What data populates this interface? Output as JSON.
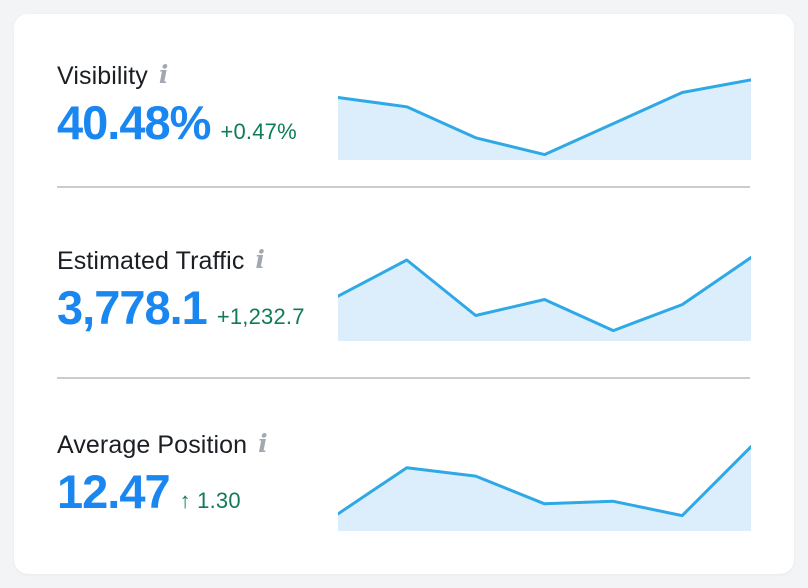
{
  "colors": {
    "page_bg": "#F3F4F6",
    "card_bg": "#FFFFFF",
    "title_text": "#1B1F24",
    "accent_blue": "#1A86F0",
    "delta_green": "#107C57",
    "info_icon": "#A2A8B2",
    "divider": "#C9CDD2",
    "spark_line": "#2FA9E6",
    "spark_fill": "#DCEEFB"
  },
  "icons": {
    "info": "i",
    "up_arrow": "↑"
  },
  "metrics": [
    {
      "label": "Visibility",
      "value": "40.48%",
      "delta": "+0.47%"
    },
    {
      "label": "Estimated Traffic",
      "value": "3,778.1",
      "delta": "+1,232.7"
    },
    {
      "label": "Average Position",
      "value": "12.47",
      "delta": "↑ 1.30"
    }
  ],
  "chart_data": [
    {
      "type": "area",
      "name": "visibility-trend",
      "x": [
        1,
        2,
        3,
        4,
        5,
        6,
        7
      ],
      "values": [
        72,
        61,
        24,
        4,
        41,
        78,
        93
      ],
      "ylim": [
        0,
        100
      ],
      "grid": false,
      "legend": false,
      "line_color": "#2FA9E6",
      "fill_color": "#DCEEFB"
    },
    {
      "type": "area",
      "name": "estimated-traffic-trend",
      "x": [
        1,
        2,
        3,
        4,
        5,
        6,
        7
      ],
      "values": [
        51,
        94,
        28,
        47,
        10,
        41,
        97
      ],
      "ylim": [
        0,
        100
      ],
      "grid": false,
      "legend": false,
      "line_color": "#2FA9E6",
      "fill_color": "#DCEEFB"
    },
    {
      "type": "area",
      "name": "average-position-trend",
      "x": [
        1,
        2,
        3,
        4,
        5,
        6,
        7
      ],
      "values": [
        18,
        73,
        63,
        30,
        33,
        16,
        98
      ],
      "ylim": [
        0,
        100
      ],
      "grid": false,
      "legend": false,
      "line_color": "#2FA9E6",
      "fill_color": "#DCEEFB"
    }
  ]
}
